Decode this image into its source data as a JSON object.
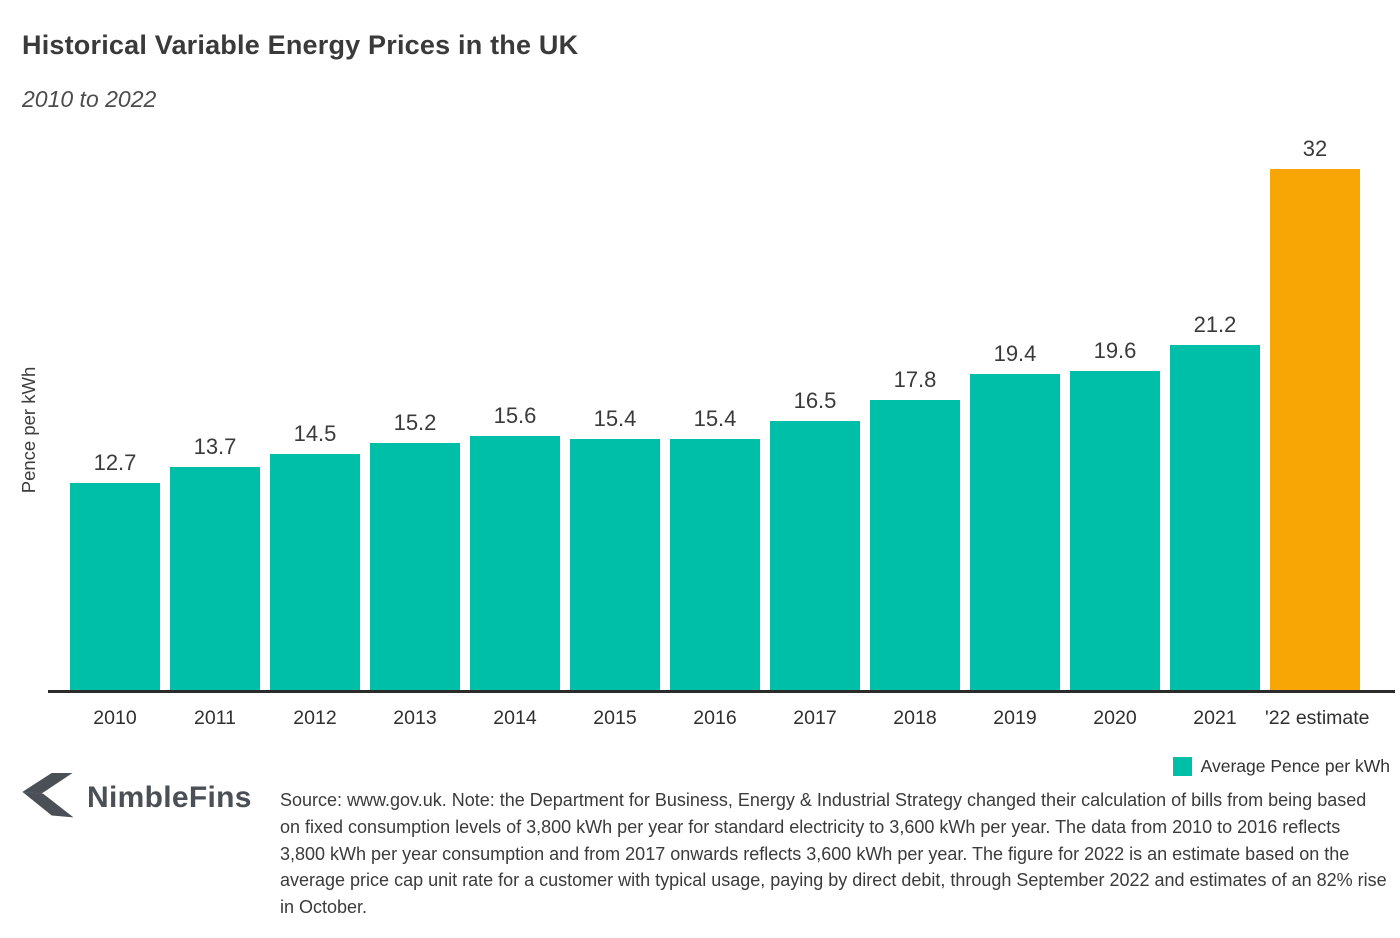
{
  "header": {
    "title": "Historical Variable Energy Prices in the UK",
    "subtitle": "2010 to 2022"
  },
  "chart_data": {
    "type": "bar",
    "title": "Historical Variable Energy Prices in the UK",
    "subtitle": "2010 to 2022",
    "categories": [
      "2010",
      "2011",
      "2012",
      "2013",
      "2014",
      "2015",
      "2016",
      "2017",
      "2018",
      "2019",
      "2020",
      "2021",
      "'22 estimate"
    ],
    "values": [
      12.7,
      13.7,
      14.5,
      15.2,
      15.6,
      15.4,
      15.4,
      16.5,
      17.8,
      19.4,
      19.6,
      21.2,
      32
    ],
    "bar_colors": [
      "#00BFA8",
      "#00BFA8",
      "#00BFA8",
      "#00BFA8",
      "#00BFA8",
      "#00BFA8",
      "#00BFA8",
      "#00BFA8",
      "#00BFA8",
      "#00BFA8",
      "#00BFA8",
      "#00BFA8",
      "#F8A605"
    ],
    "xlabel": "",
    "ylabel": "Pence per kWh",
    "ylim": [
      0,
      32
    ],
    "grid": false,
    "data_labels_shown": true,
    "legend_position": "bottom-right",
    "legend": [
      {
        "label": "Average Pence per kWh",
        "color": "#00BFA8"
      }
    ],
    "colors": {
      "series_default": "#00BFA8",
      "estimate_highlight": "#F8A605",
      "axis_line": "#2b2b2b"
    }
  },
  "footer": {
    "brand_name": "NimbleFins",
    "note": "Source: www.gov.uk. Note: the Department for Business, Energy & Industrial Strategy changed their calculation of bills from being based on fixed consumption levels of 3,800 kWh per year for standard electricity to 3,600 kWh per year. The data from 2010 to 2016 reflects 3,800 kWh per year consumption and from 2017 onwards reflects 3,600 kWh per year. The figure for 2022 is an estimate based on the average price cap unit rate for a customer with typical usage, paying by direct debit, through September 2022 and estimates of an 82% rise in October."
  }
}
